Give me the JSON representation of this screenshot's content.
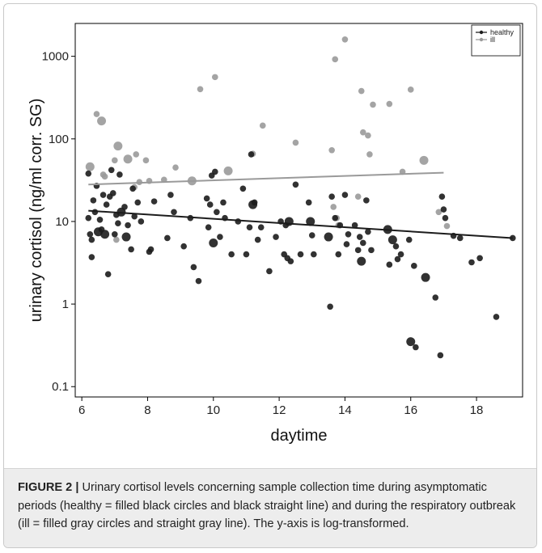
{
  "caption": {
    "label": "FIGURE 2 |",
    "text": " Urinary cortisol levels concerning sample collection time during asymptomatic periods (healthy = filled black circles and black straight line) and during the respiratory outbreak (ill = filled gray circles and straight gray line). The y-axis is log-transformed."
  },
  "chart_data": {
    "type": "scatter",
    "title": "",
    "xlabel": "daytime",
    "ylabel": "urinary cortisol (ng/ml corr. SG)",
    "xlim": [
      5.8,
      19.4
    ],
    "ylim": [
      0.075,
      2500
    ],
    "yscale": "log",
    "x_ticks": [
      6,
      8,
      10,
      12,
      14,
      16,
      18
    ],
    "x_tick_labels": [
      "6",
      "8",
      "10",
      "12",
      "14",
      "16",
      "18"
    ],
    "y_ticks": [
      0.1,
      1,
      10,
      100,
      1000
    ],
    "y_tick_labels": [
      "0.1",
      "1",
      "10",
      "100",
      "1000"
    ],
    "grid": false,
    "legend_position": "top-right",
    "series": [
      {
        "name": "healthy",
        "color": "#1c1c1c",
        "fit_line": {
          "x": [
            6.2,
            19.1
          ],
          "y": [
            13.5,
            6.3
          ]
        },
        "points": [
          {
            "x": 6.2,
            "y": 38,
            "s": 2
          },
          {
            "x": 6.2,
            "y": 11,
            "s": 2
          },
          {
            "x": 6.25,
            "y": 7,
            "s": 2
          },
          {
            "x": 6.3,
            "y": 6,
            "s": 2
          },
          {
            "x": 6.3,
            "y": 3.7,
            "s": 2
          },
          {
            "x": 6.35,
            "y": 18,
            "s": 2
          },
          {
            "x": 6.4,
            "y": 13,
            "s": 2
          },
          {
            "x": 6.45,
            "y": 27,
            "s": 2
          },
          {
            "x": 6.5,
            "y": 7.5,
            "s": 3
          },
          {
            "x": 6.55,
            "y": 10.5,
            "s": 2
          },
          {
            "x": 6.6,
            "y": 8,
            "s": 2
          },
          {
            "x": 6.65,
            "y": 21,
            "s": 2
          },
          {
            "x": 6.7,
            "y": 7,
            "s": 3
          },
          {
            "x": 6.75,
            "y": 16,
            "s": 2
          },
          {
            "x": 6.8,
            "y": 2.3,
            "s": 2
          },
          {
            "x": 6.85,
            "y": 20,
            "s": 2
          },
          {
            "x": 6.9,
            "y": 42,
            "s": 2
          },
          {
            "x": 6.95,
            "y": 22,
            "s": 2
          },
          {
            "x": 7.0,
            "y": 7,
            "s": 2
          },
          {
            "x": 7.05,
            "y": 12,
            "s": 2
          },
          {
            "x": 7.1,
            "y": 9.5,
            "s": 2
          },
          {
            "x": 7.15,
            "y": 37,
            "s": 2
          },
          {
            "x": 7.2,
            "y": 13,
            "s": 3
          },
          {
            "x": 7.3,
            "y": 15,
            "s": 2
          },
          {
            "x": 7.35,
            "y": 6.5,
            "s": 3
          },
          {
            "x": 7.4,
            "y": 9,
            "s": 2
          },
          {
            "x": 7.5,
            "y": 4.6,
            "s": 2
          },
          {
            "x": 7.55,
            "y": 25,
            "s": 2
          },
          {
            "x": 7.6,
            "y": 11.5,
            "s": 2
          },
          {
            "x": 7.7,
            "y": 17,
            "s": 2
          },
          {
            "x": 7.8,
            "y": 10,
            "s": 2
          },
          {
            "x": 8.05,
            "y": 4.3,
            "s": 2
          },
          {
            "x": 8.1,
            "y": 4.6,
            "s": 2
          },
          {
            "x": 8.2,
            "y": 17.5,
            "s": 2
          },
          {
            "x": 8.6,
            "y": 6.3,
            "s": 2
          },
          {
            "x": 8.7,
            "y": 21,
            "s": 2
          },
          {
            "x": 8.8,
            "y": 13,
            "s": 2
          },
          {
            "x": 9.1,
            "y": 5,
            "s": 2
          },
          {
            "x": 9.3,
            "y": 11,
            "s": 2
          },
          {
            "x": 9.4,
            "y": 2.8,
            "s": 2
          },
          {
            "x": 9.55,
            "y": 1.9,
            "s": 2
          },
          {
            "x": 9.8,
            "y": 19,
            "s": 2
          },
          {
            "x": 9.85,
            "y": 8.5,
            "s": 2
          },
          {
            "x": 9.9,
            "y": 16,
            "s": 2
          },
          {
            "x": 9.95,
            "y": 36,
            "s": 2
          },
          {
            "x": 10.0,
            "y": 5.5,
            "s": 3
          },
          {
            "x": 10.05,
            "y": 40,
            "s": 2
          },
          {
            "x": 10.1,
            "y": 13,
            "s": 2
          },
          {
            "x": 10.2,
            "y": 6.5,
            "s": 2
          },
          {
            "x": 10.3,
            "y": 17,
            "s": 2
          },
          {
            "x": 10.35,
            "y": 11,
            "s": 2
          },
          {
            "x": 10.55,
            "y": 4,
            "s": 2
          },
          {
            "x": 10.75,
            "y": 10,
            "s": 2
          },
          {
            "x": 10.9,
            "y": 25,
            "s": 2
          },
          {
            "x": 11.0,
            "y": 4,
            "s": 2
          },
          {
            "x": 11.1,
            "y": 8.5,
            "s": 2
          },
          {
            "x": 11.15,
            "y": 65,
            "s": 2
          },
          {
            "x": 11.2,
            "y": 16,
            "s": 3
          },
          {
            "x": 11.25,
            "y": 17,
            "s": 2
          },
          {
            "x": 11.35,
            "y": 6,
            "s": 2
          },
          {
            "x": 11.45,
            "y": 8.5,
            "s": 2
          },
          {
            "x": 11.7,
            "y": 2.5,
            "s": 2
          },
          {
            "x": 11.9,
            "y": 6.5,
            "s": 2
          },
          {
            "x": 12.05,
            "y": 10,
            "s": 2
          },
          {
            "x": 12.15,
            "y": 4,
            "s": 2
          },
          {
            "x": 12.2,
            "y": 9,
            "s": 2
          },
          {
            "x": 12.25,
            "y": 3.6,
            "s": 2
          },
          {
            "x": 12.3,
            "y": 10,
            "s": 3
          },
          {
            "x": 12.35,
            "y": 3.3,
            "s": 2
          },
          {
            "x": 12.5,
            "y": 28,
            "s": 2
          },
          {
            "x": 12.65,
            "y": 4,
            "s": 2
          },
          {
            "x": 12.9,
            "y": 17,
            "s": 2
          },
          {
            "x": 12.95,
            "y": 10,
            "s": 3
          },
          {
            "x": 13.0,
            "y": 6.8,
            "s": 2
          },
          {
            "x": 13.05,
            "y": 4,
            "s": 2
          },
          {
            "x": 13.5,
            "y": 6.5,
            "s": 3
          },
          {
            "x": 13.55,
            "y": 0.93,
            "s": 2
          },
          {
            "x": 13.6,
            "y": 20,
            "s": 2
          },
          {
            "x": 13.7,
            "y": 11,
            "s": 2
          },
          {
            "x": 13.8,
            "y": 4,
            "s": 2
          },
          {
            "x": 13.85,
            "y": 9,
            "s": 2
          },
          {
            "x": 14.0,
            "y": 21,
            "s": 2
          },
          {
            "x": 14.05,
            "y": 5.3,
            "s": 2
          },
          {
            "x": 14.1,
            "y": 7,
            "s": 2
          },
          {
            "x": 14.3,
            "y": 9,
            "s": 2
          },
          {
            "x": 14.4,
            "y": 4.5,
            "s": 2
          },
          {
            "x": 14.45,
            "y": 6.5,
            "s": 2
          },
          {
            "x": 14.5,
            "y": 3.3,
            "s": 3
          },
          {
            "x": 14.55,
            "y": 5.5,
            "s": 2
          },
          {
            "x": 14.65,
            "y": 18,
            "s": 2
          },
          {
            "x": 14.7,
            "y": 7.5,
            "s": 2
          },
          {
            "x": 14.8,
            "y": 4.5,
            "s": 2
          },
          {
            "x": 15.3,
            "y": 8,
            "s": 3
          },
          {
            "x": 15.35,
            "y": 3,
            "s": 2
          },
          {
            "x": 15.45,
            "y": 6,
            "s": 3
          },
          {
            "x": 15.55,
            "y": 5,
            "s": 2
          },
          {
            "x": 15.6,
            "y": 3.5,
            "s": 2
          },
          {
            "x": 15.7,
            "y": 4,
            "s": 2
          },
          {
            "x": 15.95,
            "y": 6,
            "s": 2
          },
          {
            "x": 16.0,
            "y": 0.35,
            "s": 3
          },
          {
            "x": 16.1,
            "y": 2.9,
            "s": 2
          },
          {
            "x": 16.15,
            "y": 0.3,
            "s": 2
          },
          {
            "x": 16.45,
            "y": 2.1,
            "s": 3
          },
          {
            "x": 16.75,
            "y": 1.2,
            "s": 2
          },
          {
            "x": 16.9,
            "y": 0.24,
            "s": 2
          },
          {
            "x": 16.95,
            "y": 20,
            "s": 2
          },
          {
            "x": 17.0,
            "y": 14,
            "s": 2
          },
          {
            "x": 17.05,
            "y": 11,
            "s": 2
          },
          {
            "x": 17.3,
            "y": 6.7,
            "s": 2
          },
          {
            "x": 17.5,
            "y": 6.3,
            "s": 2
          },
          {
            "x": 17.85,
            "y": 3.2,
            "s": 2
          },
          {
            "x": 18.1,
            "y": 3.6,
            "s": 2
          },
          {
            "x": 18.6,
            "y": 0.7,
            "s": 2
          },
          {
            "x": 19.1,
            "y": 6.3,
            "s": 2
          }
        ]
      },
      {
        "name": "ill",
        "color": "#9a9a9a",
        "fit_line": {
          "x": [
            6.2,
            17.0
          ],
          "y": [
            28,
            39
          ]
        },
        "points": [
          {
            "x": 6.25,
            "y": 46,
            "s": 3
          },
          {
            "x": 6.45,
            "y": 200,
            "s": 2
          },
          {
            "x": 6.6,
            "y": 165,
            "s": 3
          },
          {
            "x": 6.65,
            "y": 37,
            "s": 2
          },
          {
            "x": 6.7,
            "y": 35,
            "s": 2
          },
          {
            "x": 7.0,
            "y": 55,
            "s": 2
          },
          {
            "x": 7.05,
            "y": 6,
            "s": 2
          },
          {
            "x": 7.1,
            "y": 82,
            "s": 3
          },
          {
            "x": 7.4,
            "y": 57,
            "s": 3
          },
          {
            "x": 7.6,
            "y": 26,
            "s": 2
          },
          {
            "x": 7.65,
            "y": 65,
            "s": 2
          },
          {
            "x": 7.75,
            "y": 30,
            "s": 2
          },
          {
            "x": 7.95,
            "y": 55,
            "s": 2
          },
          {
            "x": 8.05,
            "y": 31,
            "s": 2
          },
          {
            "x": 8.5,
            "y": 32,
            "s": 2
          },
          {
            "x": 8.85,
            "y": 45,
            "s": 2
          },
          {
            "x": 9.35,
            "y": 31,
            "s": 3
          },
          {
            "x": 9.6,
            "y": 400,
            "s": 2
          },
          {
            "x": 10.05,
            "y": 560,
            "s": 2
          },
          {
            "x": 10.45,
            "y": 41,
            "s": 3
          },
          {
            "x": 11.2,
            "y": 66,
            "s": 2
          },
          {
            "x": 11.5,
            "y": 145,
            "s": 2
          },
          {
            "x": 12.5,
            "y": 90,
            "s": 2
          },
          {
            "x": 13.6,
            "y": 73,
            "s": 2
          },
          {
            "x": 13.65,
            "y": 15,
            "s": 2
          },
          {
            "x": 13.7,
            "y": 920,
            "s": 2
          },
          {
            "x": 13.75,
            "y": 11,
            "s": 2
          },
          {
            "x": 13.8,
            "y": 9,
            "s": 2
          },
          {
            "x": 14.0,
            "y": 1600,
            "s": 2
          },
          {
            "x": 14.4,
            "y": 20,
            "s": 2
          },
          {
            "x": 14.5,
            "y": 380,
            "s": 2
          },
          {
            "x": 14.55,
            "y": 120,
            "s": 2
          },
          {
            "x": 14.7,
            "y": 110,
            "s": 2
          },
          {
            "x": 14.75,
            "y": 65,
            "s": 2
          },
          {
            "x": 14.85,
            "y": 260,
            "s": 2
          },
          {
            "x": 15.35,
            "y": 265,
            "s": 2
          },
          {
            "x": 15.75,
            "y": 40,
            "s": 2
          },
          {
            "x": 16.0,
            "y": 395,
            "s": 2
          },
          {
            "x": 16.4,
            "y": 55,
            "s": 3
          },
          {
            "x": 16.85,
            "y": 13,
            "s": 2
          },
          {
            "x": 17.1,
            "y": 8.8,
            "s": 2
          }
        ]
      }
    ]
  }
}
